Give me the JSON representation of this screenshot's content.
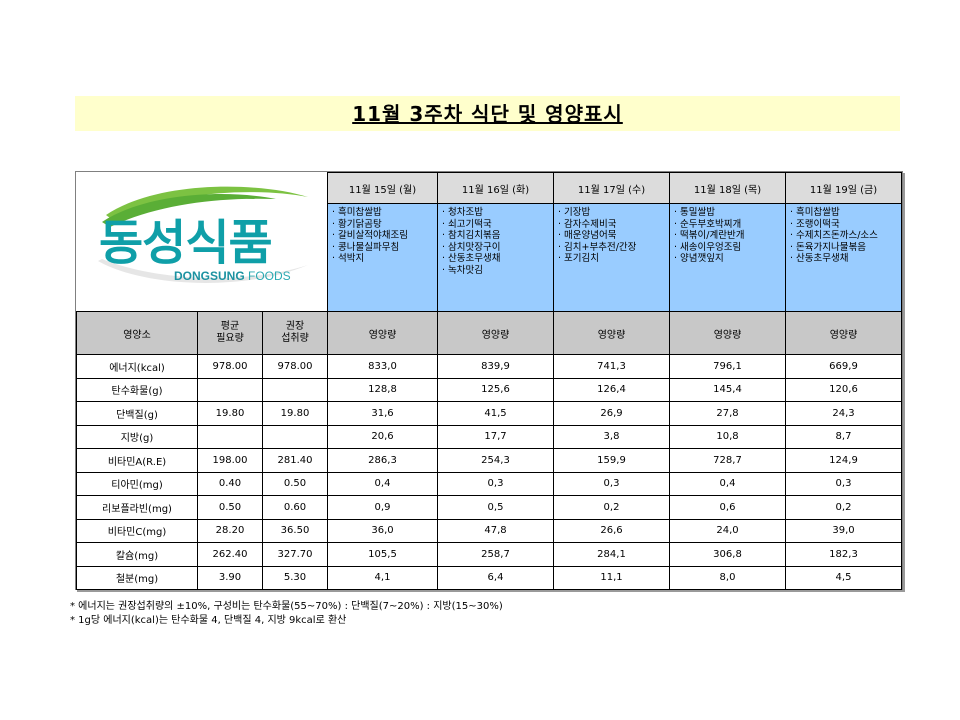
{
  "title": "11월 3주차 식단 및 영양표시",
  "logo": {
    "ko": "동성식품",
    "en_bold": "DONGSUNG",
    "en_light": " FOODS"
  },
  "days": [
    {
      "date": "11월 15일 (월)",
      "menu": [
        "흑미찹쌀밥",
        "황기닭곰탕",
        "갈비살적야채조림",
        "콩나물실파무침",
        "석박지"
      ]
    },
    {
      "date": "11월 16일 (화)",
      "menu": [
        "청차조밥",
        "쇠고기떡국",
        "참치김치볶음",
        "삼치맛장구이",
        "산동초무생채",
        "녹차맛김"
      ]
    },
    {
      "date": "11월 17일 (수)",
      "menu": [
        "기장밥",
        "감자수제비국",
        "매운양념어묵",
        "김치+부추전/간장",
        "포기김치"
      ]
    },
    {
      "date": "11월 18일 (목)",
      "menu": [
        "통밀쌀밥",
        "순두부호박찌개",
        "떡볶이/계란반개",
        "새송이우엉조림",
        "양념깻잎지"
      ]
    },
    {
      "date": "11월 19일 (금)",
      "menu": [
        "흑미찹쌀밥",
        "조랭이떡국",
        "수제치즈돈까스/소스",
        "돈육가지나물볶음",
        "산동초무생채"
      ]
    }
  ],
  "nutrition": {
    "headers": {
      "nutrient": "영양소",
      "avg": "평균\n필요량",
      "rec": "권장\n섭취량",
      "amount": "영양량"
    },
    "rows": [
      {
        "name": "에너지(kcal)",
        "avg": "978.00",
        "rec": "978.00",
        "vals": [
          "833,0",
          "839,9",
          "741,3",
          "796,1",
          "669,9"
        ]
      },
      {
        "name": "탄수화물(g)",
        "avg": "",
        "rec": "",
        "vals": [
          "128,8",
          "125,6",
          "126,4",
          "145,4",
          "120,6"
        ]
      },
      {
        "name": "단백질(g)",
        "avg": "19.80",
        "rec": "19.80",
        "vals": [
          "31,6",
          "41,5",
          "26,9",
          "27,8",
          "24,3"
        ]
      },
      {
        "name": "지방(g)",
        "avg": "",
        "rec": "",
        "vals": [
          "20,6",
          "17,7",
          "3,8",
          "10,8",
          "8,7"
        ]
      },
      {
        "name": "비타민A(R.E)",
        "avg": "198.00",
        "rec": "281.40",
        "vals": [
          "286,3",
          "254,3",
          "159,9",
          "728,7",
          "124,9"
        ]
      },
      {
        "name": "티아민(mg)",
        "avg": "0.40",
        "rec": "0.50",
        "vals": [
          "0,4",
          "0,3",
          "0,3",
          "0,4",
          "0,3"
        ]
      },
      {
        "name": "리보플라빈(mg)",
        "avg": "0.50",
        "rec": "0.60",
        "vals": [
          "0,9",
          "0,5",
          "0,2",
          "0,6",
          "0,2"
        ]
      },
      {
        "name": "비타민C(mg)",
        "avg": "28.20",
        "rec": "36.50",
        "vals": [
          "36,0",
          "47,8",
          "26,6",
          "24,0",
          "39,0"
        ]
      },
      {
        "name": "칼슘(mg)",
        "avg": "262.40",
        "rec": "327.70",
        "vals": [
          "105,5",
          "258,7",
          "284,1",
          "306,8",
          "182,3"
        ]
      },
      {
        "name": "철분(mg)",
        "avg": "3.90",
        "rec": "5.30",
        "vals": [
          "4,1",
          "6,4",
          "11,1",
          "8,0",
          "4,5"
        ]
      }
    ]
  },
  "notes": [
    "* 에너지는 권장섭취량의 ±10%, 구성비는 탄수화물(55~70%) : 단백질(7~20%) : 지방(15~30%)",
    "* 1g당 에너지(kcal)는 탄수화물 4, 단백질 4, 지방 9kcal로 환산"
  ],
  "colors": {
    "title_bg": "#ffffcc",
    "menu_bg": "#99ccff",
    "header_bg": "#c8c8c8",
    "logo": "#0f9fa8"
  }
}
